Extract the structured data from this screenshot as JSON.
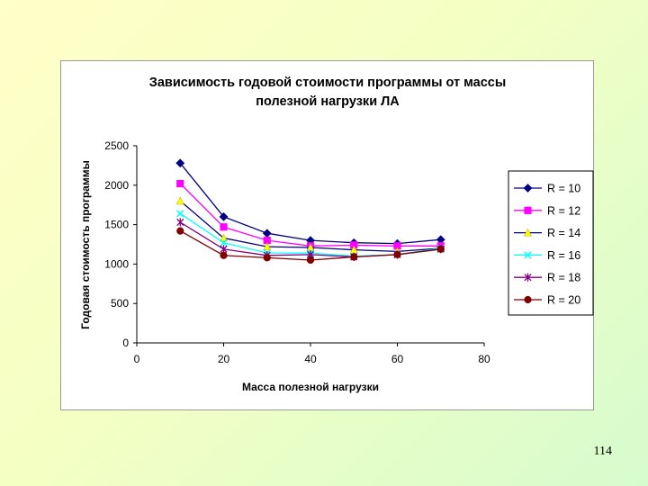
{
  "page": {
    "number": "114"
  },
  "chart_data": {
    "type": "line",
    "title_lines": [
      "Зависимость годовой стоимости программы  от массы",
      "полезной нагрузки ЛА"
    ],
    "xlabel": "Масса полезной нагрузки",
    "ylabel": "Годовая стоимость программы",
    "xlim": [
      0,
      80
    ],
    "ylim": [
      0,
      2500
    ],
    "xticks": [
      0,
      20,
      40,
      60,
      80
    ],
    "yticks": [
      0,
      500,
      1000,
      1500,
      2000,
      2500
    ],
    "grid": false,
    "legend_position": "right",
    "x": [
      10,
      20,
      30,
      40,
      50,
      60,
      70
    ],
    "series": [
      {
        "name": "R =  10",
        "color": "#000080",
        "marker": "diamond",
        "values": [
          2280,
          1600,
          1390,
          1300,
          1270,
          1260,
          1310
        ]
      },
      {
        "name": "R =  12",
        "color": "#ff00ff",
        "marker": "square",
        "values": [
          2020,
          1470,
          1300,
          1230,
          1240,
          1230,
          1230
        ]
      },
      {
        "name": "R =  14",
        "color": "#ffff00",
        "marker": "triangle",
        "values": [
          1800,
          1330,
          1220,
          1210,
          1180,
          1160,
          1200
        ]
      },
      {
        "name": "R =  16",
        "color": "#00ffff",
        "marker": "x",
        "values": [
          1640,
          1270,
          1140,
          1140,
          1100,
          1120,
          1200
        ]
      },
      {
        "name": "R =  18",
        "color": "#800080",
        "marker": "star",
        "values": [
          1530,
          1190,
          1110,
          1120,
          1090,
          1120,
          1190
        ]
      },
      {
        "name": "R =  20",
        "color": "#800000",
        "marker": "circle",
        "values": [
          1420,
          1110,
          1080,
          1050,
          1090,
          1120,
          1190
        ]
      }
    ]
  }
}
